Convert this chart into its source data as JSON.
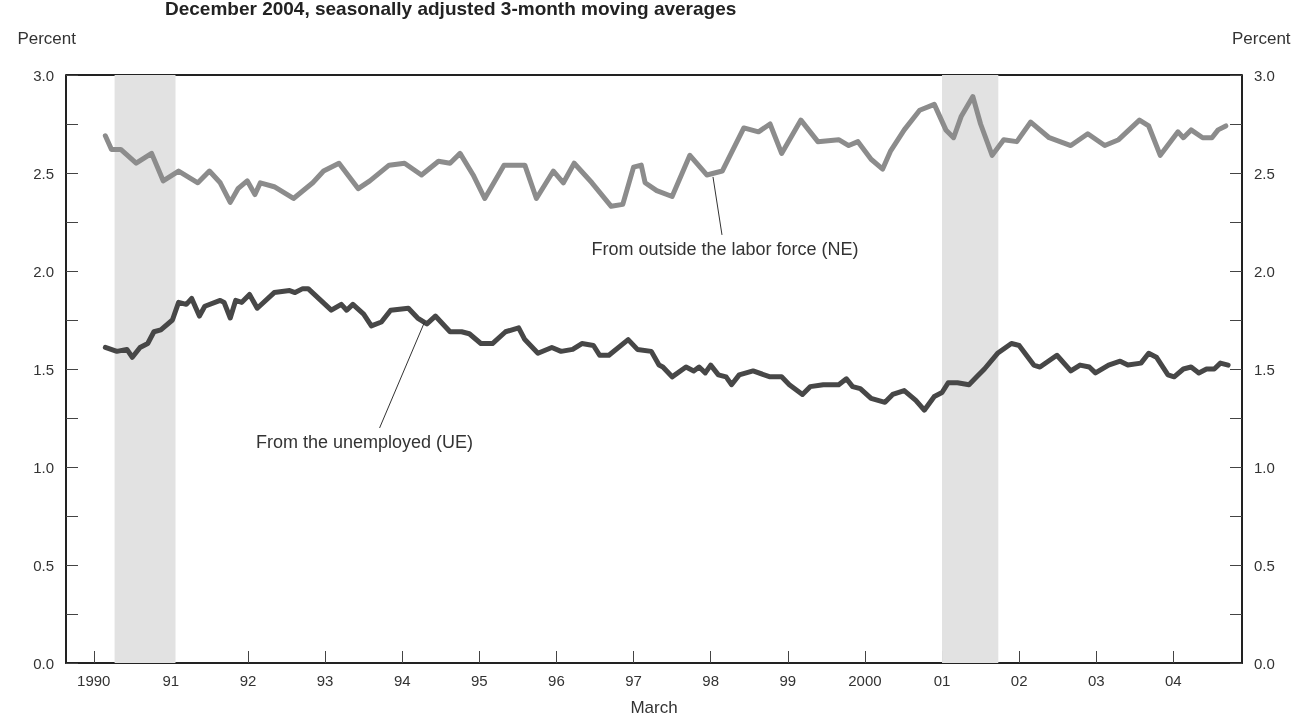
{
  "chart_data": {
    "type": "line",
    "title": "December 2004, seasonally adjusted 3-month moving averages",
    "xlabel": "March",
    "ylabel": "Percent",
    "y2label": "Percent",
    "xlim": [
      1989.64,
      2004.89
    ],
    "xticks": [
      {
        "value": 1990,
        "label": "1990"
      },
      {
        "value": 1991,
        "label": "91"
      },
      {
        "value": 1992,
        "label": "92"
      },
      {
        "value": 1993,
        "label": "93"
      },
      {
        "value": 1994,
        "label": "94"
      },
      {
        "value": 1995,
        "label": "95"
      },
      {
        "value": 1996,
        "label": "96"
      },
      {
        "value": 1997,
        "label": "97"
      },
      {
        "value": 1998,
        "label": "98"
      },
      {
        "value": 1999,
        "label": "99"
      },
      {
        "value": 2000,
        "label": "2000"
      },
      {
        "value": 2001,
        "label": "01"
      },
      {
        "value": 2002,
        "label": "02"
      },
      {
        "value": 2003,
        "label": "03"
      },
      {
        "value": 2004,
        "label": "04"
      }
    ],
    "ylim": [
      0,
      3
    ],
    "yticks": [
      {
        "value": 0,
        "label": "0.0"
      },
      {
        "value": 0.25,
        "label": null
      },
      {
        "value": 0.5,
        "label": "0.5"
      },
      {
        "value": 0.75,
        "label": null
      },
      {
        "value": 1,
        "label": "1.0"
      },
      {
        "value": 1.25,
        "label": null
      },
      {
        "value": 1.5,
        "label": "1.5"
      },
      {
        "value": 1.75,
        "label": null
      },
      {
        "value": 2,
        "label": "2.0"
      },
      {
        "value": 2.25,
        "label": null
      },
      {
        "value": 2.5,
        "label": "2.5"
      },
      {
        "value": 2.75,
        "label": null
      },
      {
        "value": 3,
        "label": "3.0"
      }
    ],
    "y2lim": [
      0,
      3
    ],
    "y2ticks": [
      {
        "value": 0,
        "label": "0.0"
      },
      {
        "value": 0.25,
        "label": null
      },
      {
        "value": 0.5,
        "label": "0.5"
      },
      {
        "value": 0.75,
        "label": null
      },
      {
        "value": 1,
        "label": "1.0"
      },
      {
        "value": 1.25,
        "label": null
      },
      {
        "value": 1.5,
        "label": "1.5"
      },
      {
        "value": 1.75,
        "label": null
      },
      {
        "value": 2,
        "label": "2.0"
      },
      {
        "value": 2.25,
        "label": null
      },
      {
        "value": 2.5,
        "label": "2.5"
      },
      {
        "value": 2.75,
        "label": null
      },
      {
        "value": 3,
        "label": "3.0"
      }
    ],
    "grid": false,
    "marker": "none",
    "line_style": "solid",
    "bands": [
      {
        "axis": "x",
        "from": 1990.27,
        "to": 1991.06,
        "color": "#e2e2e2"
      },
      {
        "axis": "x",
        "from": 2001.0,
        "to": 2001.73,
        "color": "#e2e2e2"
      }
    ],
    "annotations": [
      {
        "text": "From outside the labor force (NE)",
        "x": 1998.03,
        "y": 2.48
      },
      {
        "text": "From the unemployed (UE)",
        "x": 1994.29,
        "y": 1.74
      }
    ],
    "series": [
      {
        "color": "#8c8c8c",
        "x": [
          1990.15,
          1990.23,
          1990.35,
          1990.55,
          1990.75,
          1990.9,
          1991.1,
          1991.35,
          1991.5,
          1991.64,
          1991.77,
          1991.87,
          1991.99,
          1992.09,
          1992.16,
          1992.34,
          1992.59,
          1992.84,
          1992.98,
          1993.18,
          1993.43,
          1993.58,
          1993.83,
          1994.03,
          1994.25,
          1994.47,
          1994.62,
          1994.75,
          1994.92,
          1995.07,
          1995.32,
          1995.59,
          1995.74,
          1995.96,
          1996.09,
          1996.23,
          1996.46,
          1996.71,
          1996.86,
          1997.0,
          1997.1,
          1997.15,
          1997.3,
          1997.5,
          1997.73,
          1997.95,
          1998.15,
          1998.43,
          1998.62,
          1998.77,
          1998.92,
          1999.17,
          1999.39,
          1999.66,
          1999.79,
          1999.91,
          2000.08,
          2000.23,
          2000.33,
          2000.51,
          2000.71,
          2000.9,
          2001.05,
          2001.15,
          2001.25,
          2001.4,
          2001.5,
          2001.65,
          2001.8,
          2001.97,
          2002.15,
          2002.39,
          2002.67,
          2002.89,
          2003.11,
          2003.29,
          2003.56,
          2003.68,
          2003.83,
          2004.06,
          2004.13,
          2004.23,
          2004.38,
          2004.5,
          2004.58,
          2004.68
        ],
        "values": [
          2.69,
          2.62,
          2.62,
          2.55,
          2.6,
          2.46,
          2.51,
          2.45,
          2.51,
          2.45,
          2.35,
          2.42,
          2.46,
          2.39,
          2.45,
          2.43,
          2.37,
          2.45,
          2.51,
          2.55,
          2.42,
          2.46,
          2.54,
          2.55,
          2.49,
          2.56,
          2.55,
          2.6,
          2.49,
          2.37,
          2.54,
          2.54,
          2.37,
          2.51,
          2.45,
          2.55,
          2.45,
          2.33,
          2.34,
          2.53,
          2.54,
          2.45,
          2.41,
          2.38,
          2.59,
          2.49,
          2.51,
          2.73,
          2.71,
          2.75,
          2.6,
          2.77,
          2.66,
          2.67,
          2.64,
          2.66,
          2.57,
          2.52,
          2.61,
          2.72,
          2.82,
          2.85,
          2.72,
          2.68,
          2.79,
          2.89,
          2.75,
          2.59,
          2.67,
          2.66,
          2.76,
          2.68,
          2.64,
          2.7,
          2.64,
          2.67,
          2.77,
          2.74,
          2.59,
          2.71,
          2.68,
          2.72,
          2.68,
          2.68,
          2.72,
          2.74
        ]
      },
      {
        "color": "#474747",
        "x": [
          1990.15,
          1990.3,
          1990.43,
          1990.5,
          1990.6,
          1990.7,
          1990.78,
          1990.87,
          1991.02,
          1991.1,
          1991.2,
          1991.27,
          1991.37,
          1991.44,
          1991.64,
          1991.69,
          1991.77,
          1991.84,
          1991.92,
          1992.02,
          1992.12,
          1992.34,
          1992.54,
          1992.61,
          1992.71,
          1992.78,
          1993.08,
          1993.21,
          1993.28,
          1993.36,
          1993.5,
          1993.6,
          1993.73,
          1993.85,
          1994.08,
          1994.2,
          1994.32,
          1994.43,
          1994.62,
          1994.77,
          1994.87,
          1995.02,
          1995.17,
          1995.34,
          1995.51,
          1995.59,
          1995.76,
          1995.94,
          1996.06,
          1996.21,
          1996.33,
          1996.48,
          1996.56,
          1996.68,
          1996.93,
          1997.05,
          1997.23,
          1997.33,
          1997.38,
          1997.5,
          1997.68,
          1997.78,
          1997.85,
          1997.93,
          1998.0,
          1998.1,
          1998.2,
          1998.27,
          1998.37,
          1998.55,
          1998.77,
          1998.92,
          1999.02,
          1999.19,
          1999.29,
          1999.46,
          1999.66,
          1999.76,
          1999.84,
          1999.94,
          2000.08,
          2000.26,
          2000.36,
          2000.51,
          2000.66,
          2000.77,
          2000.9,
          2001.0,
          2001.08,
          2001.2,
          2001.35,
          2001.45,
          2001.55,
          2001.72,
          2001.9,
          2002.0,
          2002.19,
          2002.27,
          2002.49,
          2002.67,
          2002.79,
          2002.91,
          2002.99,
          2003.16,
          2003.31,
          2003.41,
          2003.58,
          2003.68,
          2003.78,
          2003.93,
          2004.01,
          2004.13,
          2004.23,
          2004.33,
          2004.43,
          2004.53,
          2004.61,
          2004.71
        ],
        "values": [
          1.61,
          1.59,
          1.6,
          1.56,
          1.61,
          1.63,
          1.69,
          1.7,
          1.75,
          1.84,
          1.83,
          1.86,
          1.77,
          1.82,
          1.85,
          1.84,
          1.76,
          1.85,
          1.84,
          1.88,
          1.81,
          1.89,
          1.9,
          1.89,
          1.91,
          1.91,
          1.8,
          1.83,
          1.8,
          1.83,
          1.78,
          1.72,
          1.74,
          1.8,
          1.81,
          1.76,
          1.73,
          1.77,
          1.69,
          1.69,
          1.68,
          1.63,
          1.63,
          1.69,
          1.71,
          1.65,
          1.58,
          1.61,
          1.59,
          1.6,
          1.63,
          1.62,
          1.57,
          1.57,
          1.65,
          1.6,
          1.59,
          1.52,
          1.51,
          1.46,
          1.51,
          1.49,
          1.51,
          1.48,
          1.52,
          1.47,
          1.46,
          1.42,
          1.47,
          1.49,
          1.46,
          1.46,
          1.42,
          1.37,
          1.41,
          1.42,
          1.42,
          1.45,
          1.41,
          1.4,
          1.35,
          1.33,
          1.37,
          1.39,
          1.34,
          1.29,
          1.36,
          1.38,
          1.43,
          1.43,
          1.42,
          1.46,
          1.5,
          1.58,
          1.63,
          1.62,
          1.52,
          1.51,
          1.57,
          1.49,
          1.52,
          1.51,
          1.48,
          1.52,
          1.54,
          1.52,
          1.53,
          1.58,
          1.56,
          1.47,
          1.46,
          1.5,
          1.51,
          1.48,
          1.5,
          1.5,
          1.53,
          1.52
        ]
      }
    ]
  }
}
